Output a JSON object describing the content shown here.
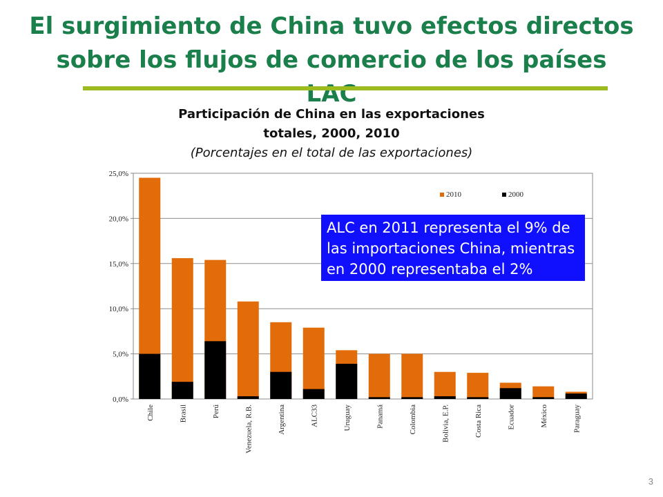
{
  "slide": {
    "title_line1": "El surgimiento de China tuvo efectos directos",
    "title_line2": "sobre los flujos de comercio de los países LAC",
    "accent_color": "#1a7f4a",
    "rule_color": "#9bbb1f",
    "page_number": "3"
  },
  "chart_titles": {
    "line1": "Participación de China en las exportaciones",
    "line2": "totales, 2000, 2010",
    "line3": "(Porcentajes en el total de las exportaciones)"
  },
  "callout": {
    "text": "ALC en 2011 representa el 9% de las importaciones China, mientras en 2000 representaba el 2%",
    "background": "#1010ff"
  },
  "chart_data": {
    "type": "bar",
    "stacked": false,
    "overlapping": true,
    "categories": [
      "Chile",
      "Brasil",
      "Perú",
      "Venezuela, R.B.",
      "Argentina",
      "ALC33",
      "Uruguay",
      "Panamá",
      "Colombia",
      "Bolivia, E.P.",
      "Costa Rica",
      "Ecuador",
      "México",
      "Paraguay"
    ],
    "series": [
      {
        "name": "2010",
        "color": "#e36c0a",
        "values": [
          24.5,
          15.6,
          15.4,
          10.8,
          8.5,
          7.9,
          5.4,
          5.0,
          5.0,
          3.0,
          2.9,
          1.8,
          1.4,
          0.8
        ]
      },
      {
        "name": "2000",
        "color": "#000000",
        "values": [
          5.0,
          1.9,
          6.4,
          0.3,
          3.0,
          1.1,
          3.9,
          0.2,
          0.2,
          0.3,
          0.2,
          1.2,
          0.2,
          0.6
        ]
      }
    ],
    "y_ticks": [
      "0,0%",
      "5,0%",
      "10,0%",
      "15,0%",
      "20,0%",
      "25,0%"
    ],
    "ylim": [
      0,
      25
    ],
    "grid": true,
    "legend_position": "top-right"
  }
}
